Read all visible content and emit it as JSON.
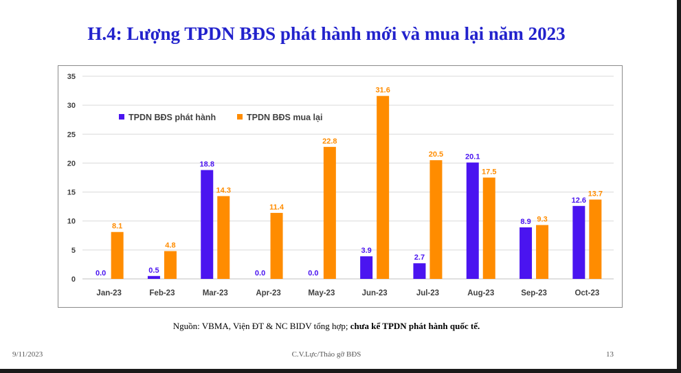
{
  "title": "H.4: Lượng TPDN BĐS phát hành mới và mua lại năm 2023",
  "source": {
    "text": "Nguồn: VBMA, Viện ĐT & NC BIDV tổng hợp; ",
    "bold": "chưa kể TPDN phát hành quốc tế."
  },
  "footer": {
    "date": "9/11/2023",
    "center": "C.V.Lực/Tháo gỡ BĐS",
    "page": "13"
  },
  "colors": {
    "title": "#2222cc",
    "issued": "#4a14f0",
    "repurchased": "#ff8c00"
  },
  "chart_data": {
    "type": "bar",
    "categories": [
      "Jan-23",
      "Feb-23",
      "Mar-23",
      "Apr-23",
      "May-23",
      "Jun-23",
      "Jul-23",
      "Aug-23",
      "Sep-23",
      "Oct-23"
    ],
    "series": [
      {
        "name": "TPDN BĐS phát hành",
        "values": [
          0.0,
          0.5,
          18.8,
          0.0,
          0.0,
          3.9,
          2.7,
          20.1,
          8.9,
          12.6
        ]
      },
      {
        "name": "TPDN BĐS mua lại",
        "values": [
          8.1,
          4.8,
          14.3,
          11.4,
          22.8,
          31.6,
          20.5,
          17.5,
          9.3,
          13.7
        ]
      }
    ],
    "ylim": [
      0,
      35
    ],
    "yticks": [
      0,
      5,
      10,
      15,
      20,
      25,
      30,
      35
    ],
    "grid": true,
    "legend": "top-left",
    "data_labels": true
  }
}
